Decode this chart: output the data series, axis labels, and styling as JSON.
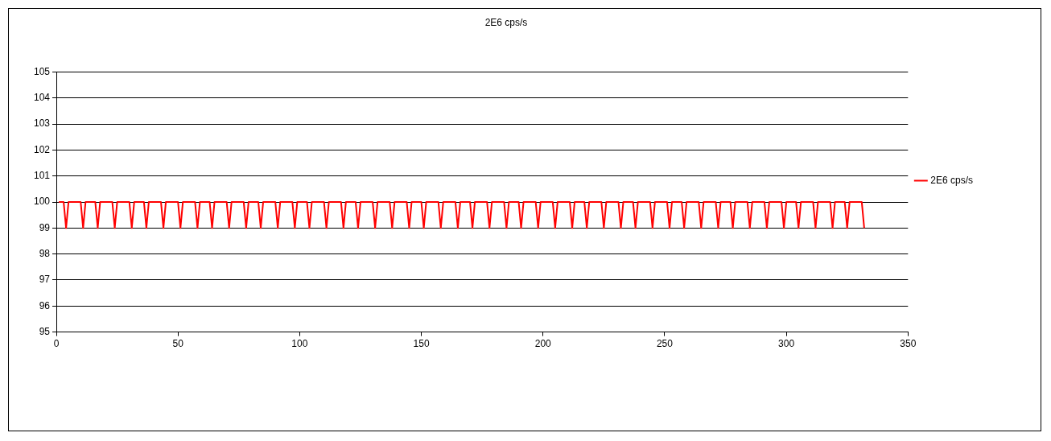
{
  "chart_data": {
    "type": "line",
    "title": "2E6 cps/s",
    "xlim": [
      0,
      350
    ],
    "xticks": [
      0,
      50,
      100,
      150,
      200,
      250,
      300,
      350
    ],
    "ylim": [
      95,
      105
    ],
    "yticks": [
      95,
      96,
      97,
      98,
      99,
      100,
      101,
      102,
      103,
      104,
      105
    ],
    "grid": "y",
    "legend": "right",
    "marker": "none",
    "line_style": "solid",
    "series": [
      {
        "name": "2E6 cps/s",
        "color": "#ff0000",
        "x": [
          1,
          3,
          4,
          5,
          10,
          11,
          12,
          16,
          17,
          18,
          23,
          24,
          25,
          30,
          31,
          32,
          36,
          37,
          38,
          43,
          44,
          45,
          50,
          51,
          52,
          57,
          58,
          59,
          63,
          64,
          65,
          70,
          71,
          72,
          77,
          78,
          79,
          83,
          84,
          85,
          90,
          91,
          92,
          97,
          98,
          99,
          103,
          104,
          105,
          110,
          111,
          112,
          117,
          118,
          119,
          123,
          124,
          125,
          130,
          131,
          132,
          137,
          138,
          139,
          144,
          145,
          146,
          150,
          151,
          152,
          157,
          158,
          159,
          164,
          165,
          166,
          170,
          171,
          172,
          177,
          178,
          179,
          184,
          185,
          186,
          190,
          191,
          192,
          197,
          198,
          199,
          204,
          205,
          206,
          211,
          212,
          213,
          217,
          218,
          219,
          224,
          225,
          226,
          231,
          232,
          233,
          237,
          238,
          239,
          244,
          245,
          246,
          251,
          252,
          253,
          257,
          258,
          259,
          264,
          265,
          266,
          271,
          272,
          273,
          277,
          278,
          279,
          284,
          285,
          286,
          291,
          292,
          293,
          298,
          299,
          300,
          304,
          305,
          306,
          311,
          312,
          313,
          318,
          319,
          320,
          324,
          325,
          326,
          331,
          332
        ],
        "values": [
          100,
          100,
          99,
          100,
          100,
          99,
          100,
          100,
          99,
          100,
          100,
          99,
          100,
          100,
          99,
          100,
          100,
          99,
          100,
          100,
          99,
          100,
          100,
          99,
          100,
          100,
          99,
          100,
          100,
          99,
          100,
          100,
          99,
          100,
          100,
          99,
          100,
          100,
          99,
          100,
          100,
          99,
          100,
          100,
          99,
          100,
          100,
          99,
          100,
          100,
          99,
          100,
          100,
          99,
          100,
          100,
          99,
          100,
          100,
          99,
          100,
          100,
          99,
          100,
          100,
          99,
          100,
          100,
          99,
          100,
          100,
          99,
          100,
          100,
          99,
          100,
          100,
          99,
          100,
          100,
          99,
          100,
          100,
          99,
          100,
          100,
          99,
          100,
          100,
          99,
          100,
          100,
          99,
          100,
          100,
          99,
          100,
          100,
          99,
          100,
          100,
          99,
          100,
          100,
          99,
          100,
          100,
          99,
          100,
          100,
          99,
          100,
          100,
          99,
          100,
          100,
          99,
          100,
          100,
          99,
          100,
          100,
          99,
          100,
          100,
          99,
          100,
          100,
          99,
          100,
          100,
          99,
          100,
          100,
          99,
          100,
          100,
          99,
          100,
          100,
          99,
          100,
          100,
          99,
          100,
          100,
          99,
          100,
          100,
          99
        ]
      }
    ]
  }
}
